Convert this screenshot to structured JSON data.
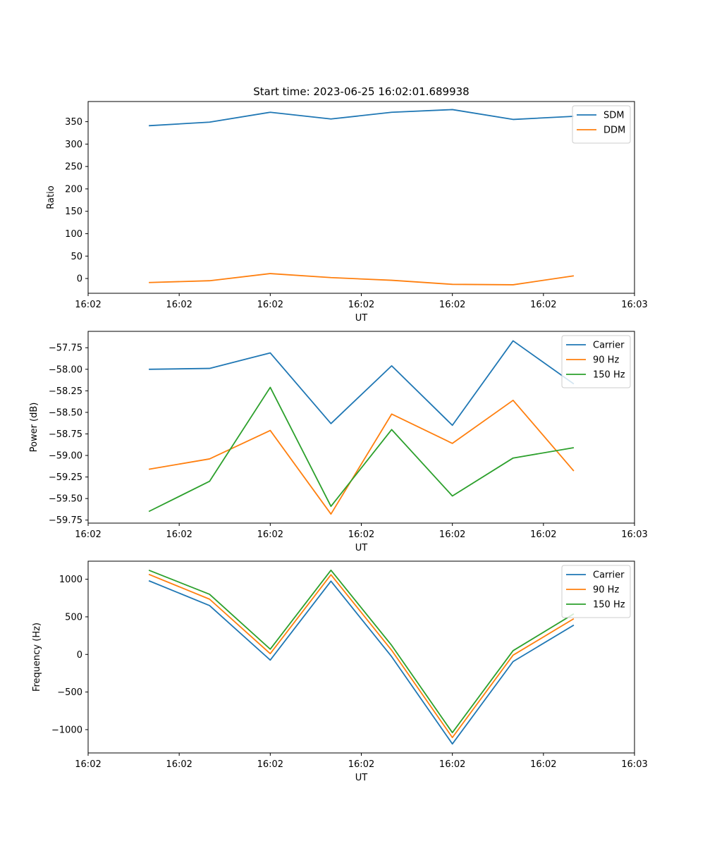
{
  "title": "Start time: 2023-06-25 16:02:01.689938",
  "chart_data": [
    {
      "type": "line",
      "ylabel": "Ratio",
      "xlabel": "UT",
      "x": [
        1,
        2,
        3,
        4,
        5,
        6,
        7,
        8
      ],
      "xlim": [
        0,
        9
      ],
      "xticks": [
        {
          "value": 0,
          "label": "16:02"
        },
        {
          "value": 1.5,
          "label": "16:02"
        },
        {
          "value": 3,
          "label": "16:02"
        },
        {
          "value": 4.5,
          "label": "16:02"
        },
        {
          "value": 6,
          "label": "16:02"
        },
        {
          "value": 7.5,
          "label": "16:02"
        },
        {
          "value": 9,
          "label": "16:03"
        }
      ],
      "ylim": [
        -33,
        395
      ],
      "yticks": [
        0,
        50,
        100,
        150,
        200,
        250,
        300,
        350
      ],
      "ytick_labels": [
        "0",
        "50",
        "100",
        "150",
        "200",
        "250",
        "300",
        "350"
      ],
      "legend": "top-right",
      "grid": false,
      "series": [
        {
          "name": "SDM",
          "color": "#1f77b4",
          "values": [
            341,
            349,
            371,
            356,
            371,
            377,
            355,
            362
          ]
        },
        {
          "name": "DDM",
          "color": "#ff7f0e",
          "values": [
            -9,
            -5,
            11,
            2,
            -4,
            -13,
            -14,
            6
          ]
        }
      ]
    },
    {
      "type": "line",
      "ylabel": "Power (dB)",
      "xlabel": "UT",
      "x": [
        1,
        2,
        3,
        4,
        5,
        6,
        7,
        8
      ],
      "xlim": [
        0,
        9
      ],
      "xticks": [
        {
          "value": 0,
          "label": "16:02"
        },
        {
          "value": 1.5,
          "label": "16:02"
        },
        {
          "value": 3,
          "label": "16:02"
        },
        {
          "value": 4.5,
          "label": "16:02"
        },
        {
          "value": 6,
          "label": "16:02"
        },
        {
          "value": 7.5,
          "label": "16:02"
        },
        {
          "value": 9,
          "label": "16:03"
        }
      ],
      "ylim": [
        -59.785,
        -57.56
      ],
      "yticks": [
        -59.75,
        -59.5,
        -59.25,
        -59.0,
        -58.75,
        -58.5,
        -58.25,
        -58.0,
        -57.75
      ],
      "ytick_labels": [
        "−59.75",
        "−59.50",
        "−59.25",
        "−59.00",
        "−58.75",
        "−58.50",
        "−58.25",
        "−58.00",
        "−57.75"
      ],
      "legend": "top-right",
      "grid": false,
      "series": [
        {
          "name": "Carrier",
          "color": "#1f77b4",
          "values": [
            -58.0,
            -57.99,
            -57.81,
            -58.63,
            -57.96,
            -58.65,
            -57.67,
            -58.17
          ]
        },
        {
          "name": "90 Hz",
          "color": "#ff7f0e",
          "values": [
            -59.16,
            -59.04,
            -58.71,
            -59.68,
            -58.52,
            -58.86,
            -58.36,
            -59.18
          ]
        },
        {
          "name": "150 Hz",
          "color": "#2ca02c",
          "values": [
            -59.65,
            -59.3,
            -58.21,
            -59.59,
            -58.7,
            -59.47,
            -59.03,
            -58.91
          ]
        }
      ]
    },
    {
      "type": "line",
      "ylabel": "Frequency (Hz)",
      "xlabel": "UT",
      "x": [
        1,
        2,
        3,
        4,
        5,
        6,
        7,
        8
      ],
      "xlim": [
        0,
        9
      ],
      "xticks": [
        {
          "value": 0,
          "label": "16:02"
        },
        {
          "value": 1.5,
          "label": "16:02"
        },
        {
          "value": 3,
          "label": "16:02"
        },
        {
          "value": 4.5,
          "label": "16:02"
        },
        {
          "value": 6,
          "label": "16:02"
        },
        {
          "value": 7.5,
          "label": "16:02"
        },
        {
          "value": 9,
          "label": "16:03"
        }
      ],
      "ylim": [
        -1310,
        1240
      ],
      "yticks": [
        -1000,
        -500,
        0,
        500,
        1000
      ],
      "ytick_labels": [
        "−1000",
        "−500",
        "0",
        "500",
        "1000"
      ],
      "legend": "top-right",
      "grid": false,
      "series": [
        {
          "name": "Carrier",
          "color": "#1f77b4",
          "values": [
            980,
            650,
            -75,
            975,
            -30,
            -1190,
            -95,
            390
          ]
        },
        {
          "name": "90 Hz",
          "color": "#ff7f0e",
          "values": [
            1065,
            735,
            10,
            1060,
            55,
            -1105,
            -10,
            475
          ]
        },
        {
          "name": "150 Hz",
          "color": "#2ca02c",
          "values": [
            1120,
            800,
            70,
            1120,
            120,
            -1040,
            50,
            540
          ]
        }
      ]
    }
  ]
}
